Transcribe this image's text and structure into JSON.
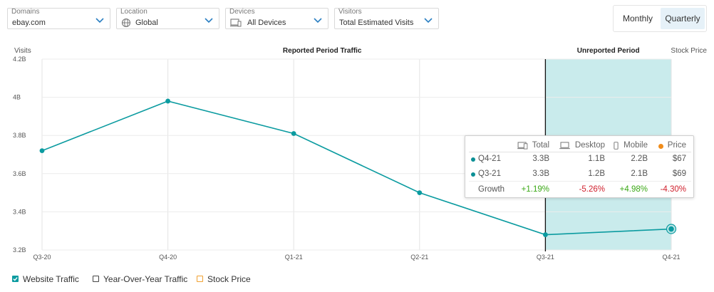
{
  "filters": {
    "domains": {
      "label": "Domains",
      "value": "ebay.com"
    },
    "location": {
      "label": "Location",
      "value": "Global"
    },
    "devices": {
      "label": "Devices",
      "value": "All Devices"
    },
    "visitors": {
      "label": "Visitors",
      "value": "Total Estimated Visits"
    }
  },
  "period_toggle": {
    "monthly": "Monthly",
    "quarterly": "Quarterly",
    "selected": "Quarterly"
  },
  "chart_data": {
    "type": "line",
    "ylabel": "Visits",
    "y2label": "Stock Price",
    "categories": [
      "Q3-20",
      "Q4-20",
      "Q1-21",
      "Q2-21",
      "Q3-21",
      "Q4-21"
    ],
    "series": [
      {
        "name": "Website Traffic",
        "color": "#0b9ba0",
        "values": [
          3.72,
          3.98,
          3.81,
          3.5,
          3.28,
          3.31
        ]
      }
    ],
    "y_ticks": [
      "3.2B",
      "3.4B",
      "3.6B",
      "3.8B",
      "4B",
      "4.2B"
    ],
    "ylim": [
      3.2,
      4.2
    ],
    "grid": true,
    "region_labels": {
      "reported": "Reported Period Traffic",
      "unreported": "Unreported Period"
    },
    "unreported_range": [
      "Q3-21",
      "Q4-21"
    ],
    "unreported_color": "#c9ebec",
    "highlighted_point": "Q4-21"
  },
  "tooltip": {
    "headers": {
      "total": "Total",
      "desktop": "Desktop",
      "mobile": "Mobile",
      "price": "Price"
    },
    "rows": [
      {
        "period": "Q4-21",
        "total": "3.3B",
        "desktop": "1.1B",
        "mobile": "2.2B",
        "price": "$67"
      },
      {
        "period": "Q3-21",
        "total": "3.3B",
        "desktop": "1.2B",
        "mobile": "2.1B",
        "price": "$69"
      }
    ],
    "growth": {
      "label": "Growth",
      "total": "+1.19%",
      "desktop": "-5.26%",
      "mobile": "+4.98%",
      "price": "-4.30%"
    }
  },
  "legend": {
    "website_traffic": {
      "label": "Website Traffic",
      "checked": true,
      "color": "#0b9ba0"
    },
    "yoy_traffic": {
      "label": "Year-Over-Year Traffic",
      "checked": false,
      "color": "#444444"
    },
    "stock_price": {
      "label": "Stock Price",
      "checked": false,
      "color": "#f0a030"
    }
  }
}
